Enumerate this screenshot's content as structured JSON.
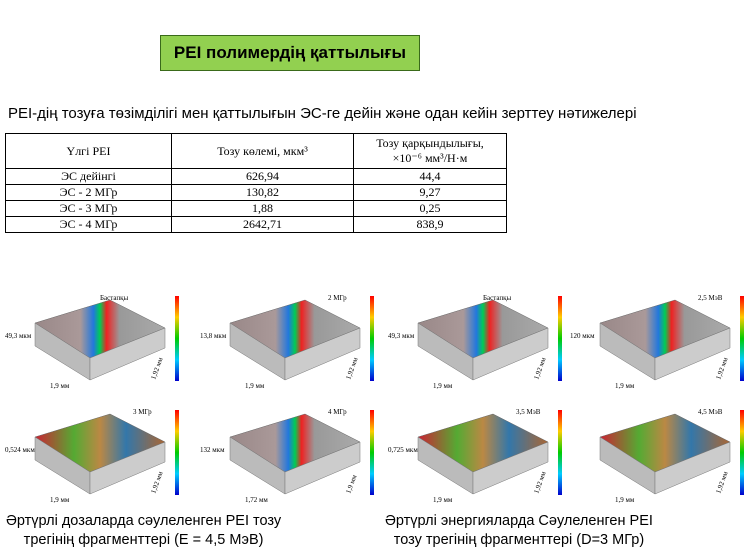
{
  "title": "PEI полимердің қаттылығы",
  "subtitle": "PEI-дің тозуға төзімділігі мен қаттылығын ЭС-ге дейін және одан кейін зерттеу нәтижелері",
  "table": {
    "header": [
      "Үлгі PEI",
      "Тозу көлемі, мкм³",
      [
        "Тозу қарқындылығы,",
        "×10⁻⁶ мм³/Н·м"
      ]
    ],
    "rows": [
      [
        "ЭС дейінгі",
        "626,94",
        "44,4"
      ],
      [
        "ЭС - 2 МГр",
        "130,82",
        "9,27"
      ],
      [
        "ЭС - 3 МГр",
        "1,88",
        "0,25"
      ],
      [
        "ЭС -  4 МГр",
        "2642,71",
        "838,9"
      ]
    ]
  },
  "left_panel": {
    "images": [
      {
        "label": "Бастапқы",
        "depth": "49,3 мкм",
        "x_size": "1,9 мм",
        "y_size": "1,92 мм"
      },
      {
        "label": "2 МГр",
        "depth": "13,8 мкм",
        "x_size": "1,9 мм",
        "y_size": "1,92 мм"
      },
      {
        "label": "3 МГр",
        "depth": "0,524 мкм",
        "x_size": "1,9 мм",
        "y_size": "1,92 мм"
      },
      {
        "label": "4 МГр",
        "depth": "132 мкм",
        "x_size": "1,72 мм",
        "y_size": "1,9 мм"
      }
    ],
    "caption": [
      "Әртүрлі дозаларда сәулеленген PEI тозу",
      "трегінің фрагменттері (E = 4,5 МэВ)"
    ]
  },
  "right_panel": {
    "images": [
      {
        "label": "Бастапқы",
        "depth": "49,3 мкм",
        "x_size": "1,9 мм",
        "y_size": "1,92 мм"
      },
      {
        "label": "2,5 МэВ",
        "depth": "120 мкм",
        "x_size": "1,9 мм",
        "y_size": "1,92 мм"
      },
      {
        "label": "3,5 МэВ",
        "depth": "0,725 мкм",
        "x_size": "1,9 мм",
        "y_size": "1,92 мм"
      },
      {
        "label": "4,5 МэВ",
        "x_size": "1,9 мм",
        "y_size": "1,92 мм"
      }
    ],
    "caption": [
      "Әртүрлі энергияларда Сәулеленген PEI",
      "тозу трегінің фрагменттері (D=3 МГр)"
    ]
  }
}
